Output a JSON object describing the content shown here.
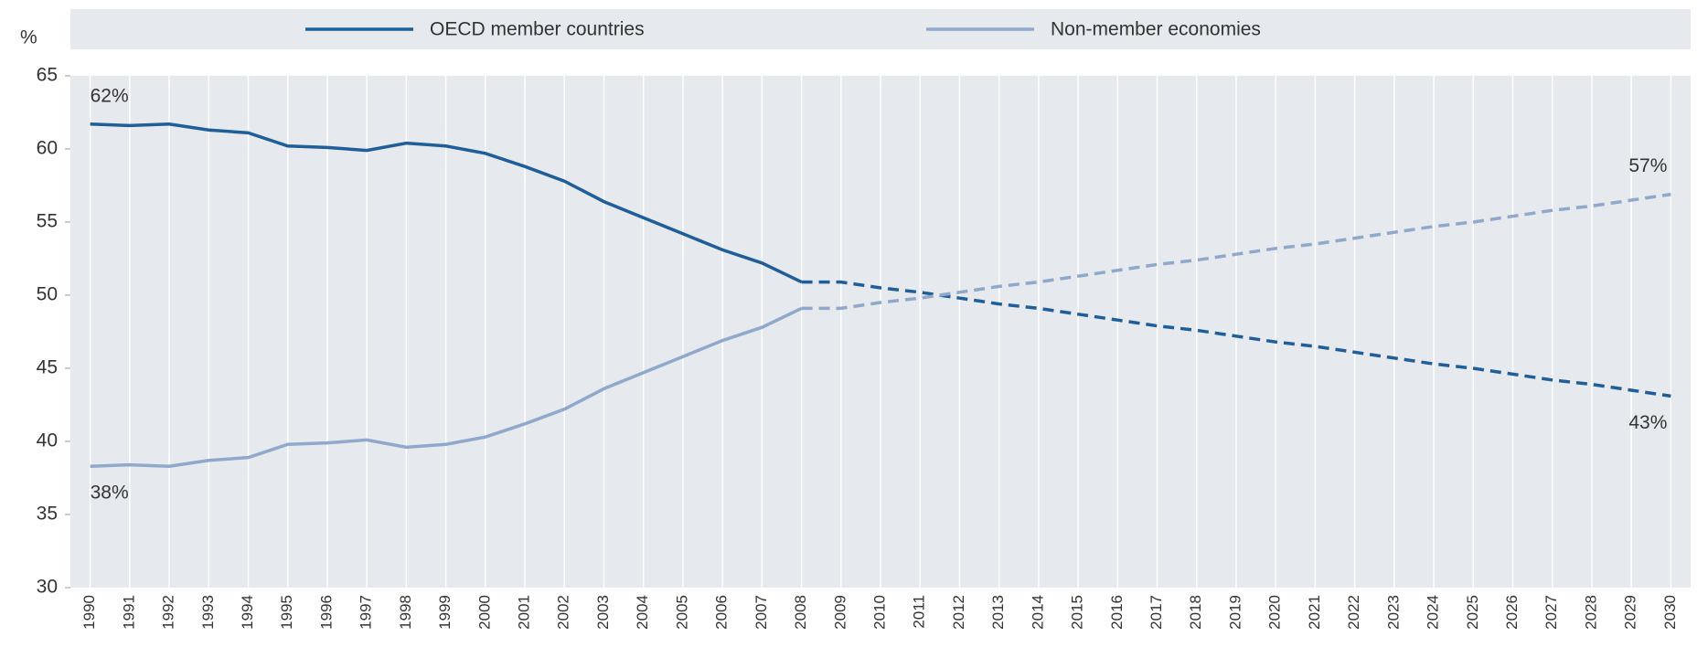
{
  "chart_data": {
    "type": "line",
    "y_label": "%",
    "categories": [
      "1990",
      "1991",
      "1992",
      "1993",
      "1994",
      "1995",
      "1996",
      "1997",
      "1998",
      "1999",
      "2000",
      "2001",
      "2002",
      "2003",
      "2004",
      "2005",
      "2006",
      "2007",
      "2008",
      "2009",
      "2010",
      "2011",
      "2012",
      "2013",
      "2014",
      "2015",
      "2016",
      "2017",
      "2018",
      "2019",
      "2020",
      "2021",
      "2022",
      "2023",
      "2024",
      "2025",
      "2026",
      "2027",
      "2028",
      "2029",
      "2030"
    ],
    "projection_start": "2008",
    "series": [
      {
        "name": "OECD member countries",
        "color": "#1f5e99",
        "values": [
          61.7,
          61.6,
          61.7,
          61.3,
          61.1,
          60.2,
          60.1,
          59.9,
          60.4,
          60.2,
          59.7,
          58.8,
          57.8,
          56.4,
          55.3,
          54.2,
          53.1,
          52.2,
          50.9,
          50.9,
          50.5,
          50.2,
          49.8,
          49.4,
          49.1,
          48.7,
          48.3,
          47.9,
          47.6,
          47.2,
          46.8,
          46.5,
          46.1,
          45.7,
          45.3,
          45.0,
          44.6,
          44.2,
          43.9,
          43.5,
          43.1
        ],
        "value_labels": [
          "62%",
          null,
          null,
          null,
          null,
          null,
          null,
          null,
          null,
          null,
          null,
          null,
          null,
          null,
          null,
          null,
          null,
          null,
          null,
          null,
          null,
          null,
          null,
          null,
          null,
          null,
          null,
          null,
          null,
          null,
          null,
          null,
          null,
          null,
          null,
          null,
          null,
          null,
          null,
          null,
          "43%"
        ]
      },
      {
        "name": "Non-member economies",
        "color": "#8fa8cb",
        "values": [
          38.3,
          38.4,
          38.3,
          38.7,
          38.9,
          39.8,
          39.9,
          40.1,
          39.6,
          39.8,
          40.3,
          41.2,
          42.2,
          43.6,
          44.7,
          45.8,
          46.9,
          47.8,
          49.1,
          49.1,
          49.5,
          49.8,
          50.2,
          50.6,
          50.9,
          51.3,
          51.7,
          52.1,
          52.4,
          52.8,
          53.2,
          53.5,
          53.9,
          54.3,
          54.7,
          55.0,
          55.4,
          55.8,
          56.1,
          56.5,
          56.9
        ],
        "value_labels": [
          "38%",
          null,
          null,
          null,
          null,
          null,
          null,
          null,
          null,
          null,
          null,
          null,
          null,
          null,
          null,
          null,
          null,
          null,
          null,
          null,
          null,
          null,
          null,
          null,
          null,
          null,
          null,
          null,
          null,
          null,
          null,
          null,
          null,
          null,
          null,
          null,
          null,
          null,
          null,
          null,
          "57%"
        ]
      }
    ],
    "ylim": [
      30,
      65
    ],
    "yticks": [
      30,
      35,
      40,
      45,
      50,
      55,
      60,
      65
    ],
    "grid": "x"
  }
}
